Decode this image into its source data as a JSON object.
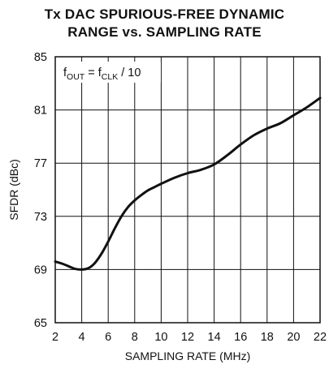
{
  "chart_data": {
    "type": "line",
    "title_line1": "Tx DAC SPURIOUS-FREE DYNAMIC",
    "title_line2": "RANGE vs. SAMPLING RATE",
    "xlabel": "SAMPLING RATE (MHz)",
    "ylabel": "SFDR (dBc)",
    "xlim": [
      2,
      22
    ],
    "ylim": [
      65,
      85
    ],
    "xticks": [
      2,
      4,
      6,
      8,
      10,
      12,
      14,
      16,
      18,
      20,
      22
    ],
    "yticks": [
      65,
      69,
      73,
      77,
      81,
      85
    ],
    "grid": true,
    "annotation": {
      "main": "f",
      "sub": "OUT",
      "eq": " = f",
      "sub2": "CLK",
      "tail": " / 10"
    },
    "series": [
      {
        "x": [
          2,
          2.5,
          3,
          3.5,
          4,
          4.5,
          5,
          5.5,
          6,
          6.5,
          7,
          7.5,
          8,
          8.5,
          9,
          9.5,
          10,
          11,
          12,
          13,
          14,
          15,
          16,
          17,
          18,
          19,
          20,
          21,
          22
        ],
        "y": [
          69.6,
          69.45,
          69.25,
          69.05,
          69.0,
          69.1,
          69.5,
          70.2,
          71.1,
          72.1,
          73.0,
          73.7,
          74.2,
          74.6,
          74.95,
          75.2,
          75.45,
          75.9,
          76.25,
          76.5,
          76.9,
          77.6,
          78.4,
          79.1,
          79.6,
          80.0,
          80.6,
          81.2,
          81.9
        ]
      }
    ]
  }
}
